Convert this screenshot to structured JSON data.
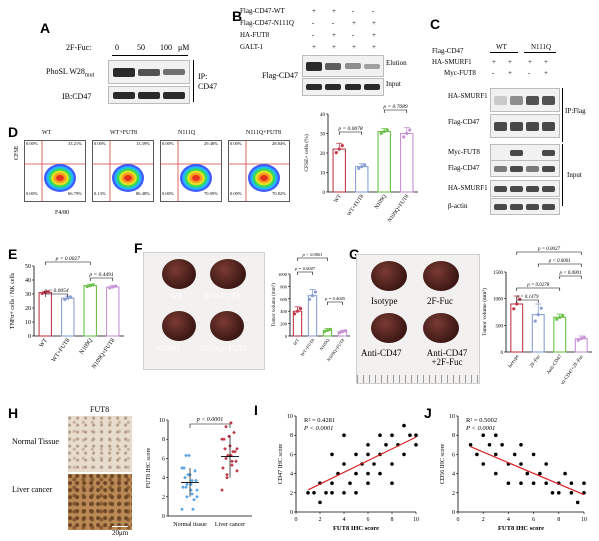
{
  "panels": {
    "A": "A",
    "B": "B",
    "C": "C",
    "D": "D",
    "E": "E",
    "F": "F",
    "G": "G",
    "H": "H",
    "I": "I",
    "J": "J"
  },
  "panelA": {
    "treatment_label": "2F-Fuc:",
    "doses": [
      "0",
      "50",
      "100"
    ],
    "unit": "μM",
    "rows": [
      "PhoSL W28",
      "IB:CD47"
    ],
    "row0_sub": "mut",
    "ip_label": "IP:",
    "ip_target": "CD47",
    "band_intensity": {
      "PhoSL": [
        0.7,
        0.55,
        0.45
      ],
      "CD47": [
        0.9,
        0.9,
        0.9
      ]
    }
  },
  "panelB": {
    "conditions": [
      "Flag-CD47-WT",
      "Flag-CD47-N111Q",
      "HA-FUT8",
      "GALT-1"
    ],
    "signs": [
      [
        "+",
        "+",
        "-",
        "-"
      ],
      [
        "-",
        "-",
        "+",
        "+"
      ],
      [
        "-",
        "+",
        "-",
        "+"
      ],
      [
        "+",
        "+",
        "+",
        "+"
      ]
    ],
    "blot_label": "Flag-CD47",
    "lanes": [
      "Elution",
      "Input"
    ],
    "band_intensity": {
      "Elution": [
        0.9,
        0.6,
        0.35,
        0.25
      ],
      "Input": [
        0.85,
        0.85,
        0.85,
        0.85
      ]
    }
  },
  "panelC": {
    "header": "Flag-CD47",
    "groups": [
      "WT",
      "N111Q"
    ],
    "conditions": [
      "HA-SMURF1",
      "Myc-FUT8"
    ],
    "signs": [
      [
        "+",
        "+",
        "+",
        "+"
      ],
      [
        "-",
        "+",
        "-",
        "+"
      ]
    ],
    "blots": [
      "HA-SMURF1",
      "Flag-CD47",
      "Myc-FUT8",
      "Flag-CD47",
      "HA-SMURF1",
      "β-actin"
    ],
    "section_labels": [
      "IP:Flag",
      "Input"
    ],
    "band_intensity": {
      "HA-SMURF1_ip": [
        0.2,
        0.5,
        0.8,
        0.8
      ],
      "Flag-CD47_ip": [
        0.85,
        0.85,
        0.85,
        0.85
      ],
      "Myc-FUT8": [
        0.0,
        0.85,
        0.0,
        0.85
      ],
      "Flag-CD47_in": [
        0.6,
        0.85,
        0.6,
        0.85
      ],
      "HA-SMURF1_in": [
        0.85,
        0.85,
        0.85,
        0.85
      ],
      "β-actin": [
        0.85,
        0.85,
        0.85,
        0.85
      ]
    }
  },
  "panelD": {
    "flow_titles": [
      "WT",
      "WT+FUT8",
      "N111Q",
      "N111Q+FUT8"
    ],
    "quadrants": [
      [
        "0.00%",
        "33.21%",
        "0.00%",
        "66.79%"
      ],
      [
        "0.00%",
        "13.39%",
        "0.13%",
        "86.48%"
      ],
      [
        "0.00%",
        "29.48%",
        "0.00%",
        "70.09%"
      ],
      [
        "0.00%",
        "28.84%",
        "0.00%",
        "70.82%"
      ]
    ],
    "flow_xlabel": "F4/80",
    "flow_ylabel": "CFSE",
    "chart_data": {
      "type": "bar",
      "categories": [
        "WT",
        "WT+FUT8",
        "N109Q",
        "N109Q+FUT8"
      ],
      "values": [
        22,
        13,
        31,
        30
      ],
      "errors": [
        3,
        1.5,
        1.5,
        3
      ],
      "ylabel": "CFSE+ cells (%)",
      "ylim": [
        0,
        40
      ],
      "yticks": [
        "0",
        "10",
        "20",
        "30",
        "40"
      ],
      "colors": [
        "#c0394b",
        "#8a9fd4",
        "#6cc24a",
        "#c793d6"
      ],
      "pvals": [
        {
          "text": "p = 0.0078"
        },
        {
          "text": "p = 0.7089"
        }
      ]
    }
  },
  "panelE": {
    "chart_data": {
      "type": "bar",
      "categories": [
        "WT",
        "WT+FUT8",
        "N109Q",
        "N109Q+FUT8"
      ],
      "values": [
        31,
        27,
        36,
        35
      ],
      "errors": [
        1,
        1.5,
        1,
        1
      ],
      "ylabel": "TNFα+ cells / NK cells",
      "ylim": [
        0,
        50
      ],
      "yticks": [
        "0",
        "10",
        "20",
        "30",
        "40",
        "50"
      ],
      "colors": [
        "#c0394b",
        "#8a9fd4",
        "#6cc24a",
        "#c793d6"
      ],
      "pvals": [
        {
          "text": "p = 0.0054"
        },
        {
          "text": "p = 0.0027"
        },
        {
          "text": "p = 0.4491"
        }
      ]
    }
  },
  "panelF": {
    "photo_labels": [
      "WT",
      "WT+FUT8",
      "N109Q",
      "N109Q+FUT8"
    ],
    "chart_data": {
      "type": "bar",
      "categories": [
        "WT",
        "WT+FUT8",
        "N109Q",
        "N109Q+FUT8"
      ],
      "values": [
        400,
        650,
        90,
        70
      ],
      "errors": [
        70,
        100,
        30,
        25
      ],
      "ylabel": "Tumor volume (mm³)",
      "ylim": [
        0,
        1000
      ],
      "yticks": [
        "0",
        "200",
        "400",
        "600",
        "800",
        "1000"
      ],
      "colors": [
        "#c0394b",
        "#8a9fd4",
        "#6cc24a",
        "#c793d6"
      ],
      "pvals": [
        {
          "text": "p = 0.0047"
        },
        {
          "text": "p < 0.0001"
        },
        {
          "text": "p = 0.4045"
        }
      ]
    }
  },
  "panelG": {
    "photo_labels": [
      "Isotype",
      "2F-Fuc",
      "Anti-CD47",
      "Anti-CD47 +2F-Fuc"
    ],
    "chart_data": {
      "type": "bar",
      "categories": [
        "Isotype",
        "2F-Fuc",
        "Anti-CD47",
        "Anti-CD47+2F-Fuc"
      ],
      "values": [
        900,
        700,
        650,
        250
      ],
      "errors": [
        150,
        200,
        60,
        50
      ],
      "ylabel": "Tumor volume (mm³)",
      "ylim": [
        0,
        1500
      ],
      "yticks": [
        "0",
        "500",
        "1000",
        "1500"
      ],
      "colors": [
        "#c0394b",
        "#8a9fd4",
        "#6cc24a",
        "#c793d6"
      ],
      "pvals": [
        {
          "text": "p = 0.1479"
        },
        {
          "text": "p = 0.0278"
        },
        {
          "text": "p = 0.0027"
        },
        {
          "text": "p < 0.0001"
        },
        {
          "text": "p < 0.0001"
        }
      ]
    }
  },
  "panelH": {
    "title": "FUT8",
    "tissue_labels": [
      "Normal Tissue",
      "Liver cancer"
    ],
    "scale": "20μm",
    "chart_data": {
      "type": "scatter",
      "categories": [
        "Normal tissue",
        "Liver cancer"
      ],
      "means": [
        3.5,
        6.2
      ],
      "sd": [
        1.5,
        2.2
      ],
      "ylabel": "FUT8 IHC score",
      "ylim": [
        0,
        10
      ],
      "yticks": [
        "0",
        "2",
        "4",
        "6",
        "8",
        "10"
      ],
      "colors": [
        "#5aa5e6",
        "#c0394b"
      ],
      "pval": "p < 0.0001"
    }
  },
  "panelI": {
    "chart_data": {
      "type": "scatter",
      "xlabel": "FUT8 IHC score",
      "ylabel": "CD47 IHC score",
      "xlim": [
        0,
        10
      ],
      "ylim": [
        0,
        10
      ],
      "xticks": [
        "0",
        "2",
        "4",
        "6",
        "8",
        "10"
      ],
      "yticks": [
        "0",
        "2",
        "4",
        "6",
        "8",
        "10"
      ],
      "r2": "R² = 0.4281",
      "p": "P < 0.0001",
      "points": [
        [
          1,
          2
        ],
        [
          1.5,
          2
        ],
        [
          2,
          1
        ],
        [
          2,
          3
        ],
        [
          2.5,
          2
        ],
        [
          3,
          3
        ],
        [
          3,
          2
        ],
        [
          3.5,
          4
        ],
        [
          4,
          2
        ],
        [
          4,
          5
        ],
        [
          4.5,
          3
        ],
        [
          5,
          4
        ],
        [
          5,
          6
        ],
        [
          5,
          2
        ],
        [
          5.5,
          5
        ],
        [
          6,
          4
        ],
        [
          6,
          7
        ],
        [
          6,
          3
        ],
        [
          6.5,
          5
        ],
        [
          7,
          6
        ],
        [
          7,
          8
        ],
        [
          7,
          4
        ],
        [
          7.5,
          7
        ],
        [
          8,
          5
        ],
        [
          8,
          8
        ],
        [
          8,
          3
        ],
        [
          8.5,
          7
        ],
        [
          9,
          6
        ],
        [
          9,
          9
        ],
        [
          9.5,
          8
        ],
        [
          10,
          8
        ],
        [
          10,
          7
        ],
        [
          4,
          8
        ],
        [
          3,
          6
        ],
        [
          6,
          6
        ]
      ],
      "fit": [
        [
          1,
          2.3
        ],
        [
          10,
          7.8
        ]
      ]
    }
  },
  "panelJ": {
    "chart_data": {
      "type": "scatter",
      "xlabel": "FUT8 IHC score",
      "ylabel": "CD56 IHC score",
      "xlim": [
        0,
        10
      ],
      "ylim": [
        0,
        10
      ],
      "xticks": [
        "0",
        "2",
        "4",
        "6",
        "8",
        "10"
      ],
      "yticks": [
        "0",
        "2",
        "4",
        "6",
        "8",
        "10"
      ],
      "r2": "R² = 0.5002",
      "p": "P < 0.0001",
      "points": [
        [
          1,
          7
        ],
        [
          1.5,
          6
        ],
        [
          2,
          8
        ],
        [
          2,
          5
        ],
        [
          2.5,
          7
        ],
        [
          3,
          6
        ],
        [
          3,
          4
        ],
        [
          3.5,
          7
        ],
        [
          4,
          5
        ],
        [
          4,
          3
        ],
        [
          4.5,
          6
        ],
        [
          5,
          5
        ],
        [
          5,
          3
        ],
        [
          5.5,
          4
        ],
        [
          6,
          6
        ],
        [
          6,
          3
        ],
        [
          6.5,
          4
        ],
        [
          7,
          3
        ],
        [
          7,
          5
        ],
        [
          7.5,
          2
        ],
        [
          8,
          3
        ],
        [
          8,
          2
        ],
        [
          8.5,
          4
        ],
        [
          9,
          2
        ],
        [
          9,
          3
        ],
        [
          9.5,
          1
        ],
        [
          10,
          2
        ],
        [
          10,
          3
        ],
        [
          3,
          8
        ],
        [
          5,
          7
        ]
      ],
      "fit": [
        [
          1,
          6.8
        ],
        [
          10,
          1.8
        ]
      ]
    }
  }
}
